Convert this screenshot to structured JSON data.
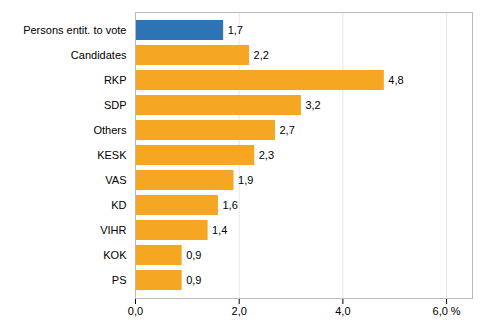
{
  "chart_data": {
    "type": "bar",
    "orientation": "horizontal",
    "categories": [
      "Persons entit. to vote",
      "Candidates",
      "RKP",
      "SDP",
      "Others",
      "KESK",
      "VAS",
      "KD",
      "VIHR",
      "KOK",
      "PS"
    ],
    "values": [
      1.7,
      2.2,
      4.8,
      3.2,
      2.7,
      2.3,
      1.9,
      1.6,
      1.4,
      0.9,
      0.9
    ],
    "value_labels": [
      "1,7",
      "2,2",
      "4,8",
      "3,2",
      "2,7",
      "2,3",
      "1,9",
      "1,6",
      "1,4",
      "0,9",
      "0,9"
    ],
    "colors": [
      "#2E74B5",
      "#F5A623",
      "#F5A623",
      "#F5A623",
      "#F5A623",
      "#F5A623",
      "#F5A623",
      "#F5A623",
      "#F5A623",
      "#F5A623",
      "#F5A623"
    ],
    "xlim": [
      0,
      6.5
    ],
    "xticks": [
      {
        "value": 0,
        "label": "0,0"
      },
      {
        "value": 2,
        "label": "2,0"
      },
      {
        "value": 4,
        "label": "4,0"
      },
      {
        "value": 6,
        "label": "6,0 %"
      }
    ],
    "grid": true,
    "data_labels": true
  }
}
